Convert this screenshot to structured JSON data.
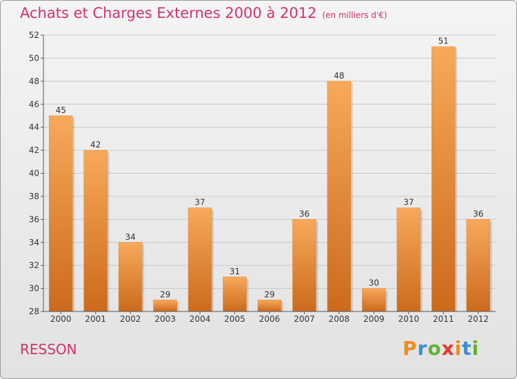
{
  "header": {
    "title": "Achats et Charges Externes 2000 à 2012",
    "unit": "(en milliers d'€)"
  },
  "footer": {
    "place": "RESSON",
    "logo": "Proxiti",
    "logo_colors": [
      "#f08a1c",
      "#3a8fd6",
      "#66b035",
      "#e23a2b",
      "#f08a1c",
      "#3a8fd6",
      "#66b035"
    ]
  },
  "colors": {
    "accent": "#d0326e",
    "bar_light": "#f7a95a",
    "bar_dark": "#cc6a1c"
  },
  "chart_data": {
    "type": "bar",
    "title": "Achats et Charges Externes 2000 à 2012",
    "subtitle": "(en milliers d'€)",
    "categories": [
      "2000",
      "2001",
      "2002",
      "2003",
      "2004",
      "2005",
      "2006",
      "2007",
      "2008",
      "2009",
      "2010",
      "2011",
      "2012"
    ],
    "values": [
      45,
      42,
      34,
      29,
      37,
      31,
      29,
      36,
      48,
      30,
      37,
      51,
      36
    ],
    "ylim": [
      28,
      52
    ],
    "yticks": [
      28,
      30,
      32,
      34,
      36,
      38,
      40,
      42,
      44,
      46,
      48,
      50,
      52
    ],
    "grid": true,
    "legend": "none"
  }
}
